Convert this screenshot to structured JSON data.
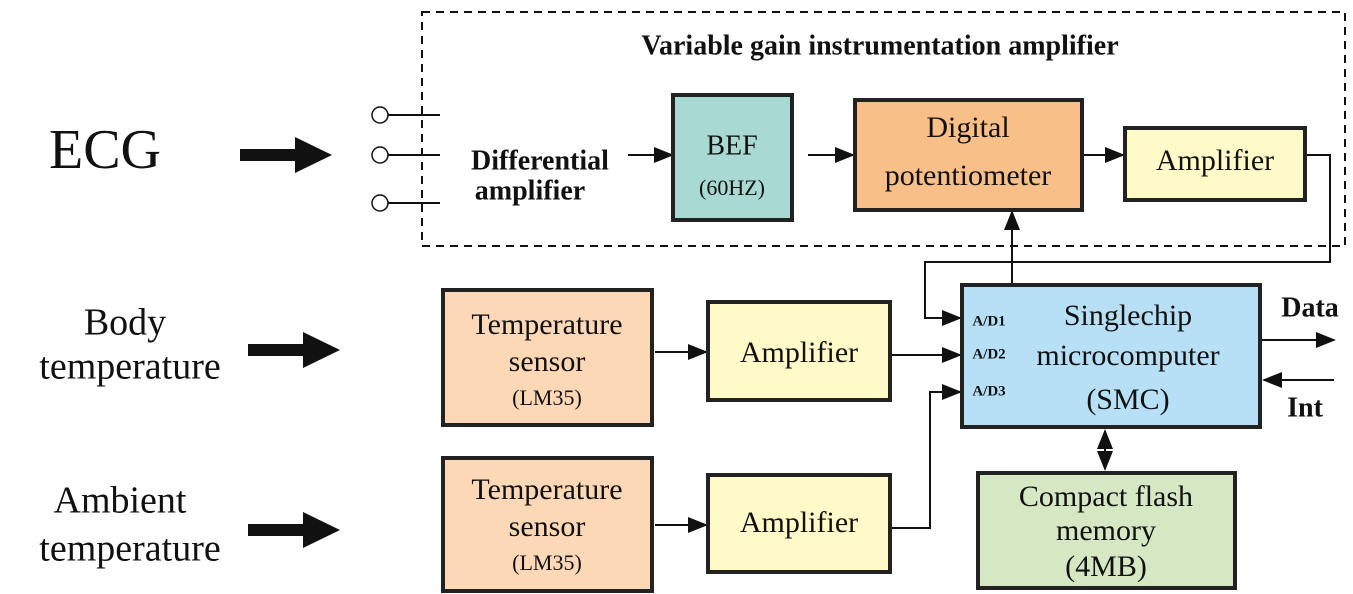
{
  "title": "Variable gain instrumentation amplifier",
  "inputs": {
    "ecg": "ECG",
    "body": [
      "Body",
      "temperature"
    ],
    "ambient": [
      "Ambient",
      "temperature"
    ]
  },
  "nodes": {
    "differential": [
      "Differential",
      "amplifier"
    ],
    "bef": [
      "BEF",
      "(60HZ)"
    ],
    "potentiometer": [
      "Digital",
      "potentiometer"
    ],
    "amplifier1": "Amplifier",
    "sensor1": [
      "Temperature",
      "sensor",
      "(LM35)"
    ],
    "amplifier2": "Amplifier",
    "sensor2": [
      "Temperature",
      "sensor",
      "(LM35)"
    ],
    "amplifier3": "Amplifier",
    "smc": [
      "Singlechip",
      "microcomputer",
      "(SMC)"
    ],
    "smc_ports": [
      "A/D1",
      "A/D2",
      "A/D3"
    ],
    "flash": [
      "Compact flash",
      "memory",
      "(4MB)"
    ]
  },
  "outputs": {
    "data": "Data",
    "int": "Int"
  }
}
